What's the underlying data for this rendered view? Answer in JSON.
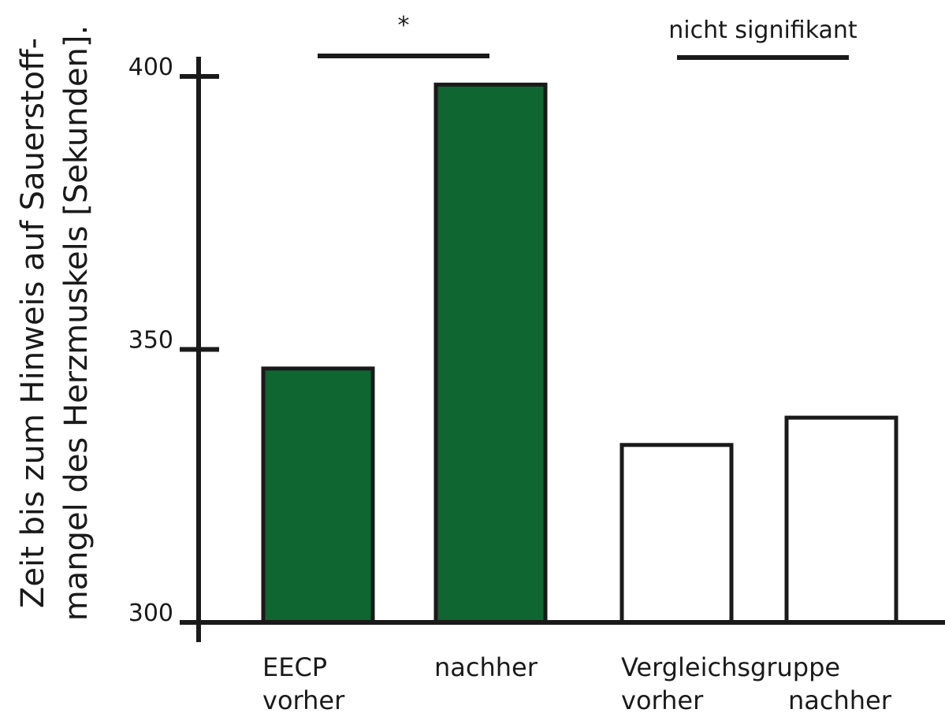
{
  "chart_data": {
    "type": "bar",
    "title": "",
    "ylabel_lines": [
      "Zeit bis zum Hinweis auf Sauerstoff-",
      "mangel des Herzmuskels [Sekunden]."
    ],
    "ylim": [
      300,
      400
    ],
    "yticks": [
      300,
      350,
      400
    ],
    "grid": false,
    "bars": [
      {
        "group": "EECP",
        "label": "vorher",
        "value": 346.5,
        "color": "#0f6630"
      },
      {
        "group": "EECP",
        "label": "nachher",
        "value": 398.5,
        "color": "#0f6630"
      },
      {
        "group": "Vergleichsgruppe",
        "label": "vorher",
        "value": 332.5,
        "color": "#ffffff"
      },
      {
        "group": "Vergleichsgruppe",
        "label": "nachher",
        "value": 337.5,
        "color": "#ffffff"
      }
    ],
    "category_labels": {
      "eecp_group": "EECP",
      "eecp_before": "vorher",
      "eecp_after": "nachher",
      "control_group": "Vergleichsgruppe",
      "control_before": "vorher",
      "control_after": "nachher"
    },
    "annotations": [
      {
        "text": "*",
        "between": [
          "EECP vorher",
          "EECP nachher"
        ]
      },
      {
        "text": "nicht signifikant",
        "between": [
          "Vergleichsgruppe vorher",
          "Vergleichsgruppe nachher"
        ]
      }
    ],
    "colors": {
      "treatment": "#0f6630",
      "control": "#ffffff",
      "outline": "#1a1a1a"
    }
  }
}
